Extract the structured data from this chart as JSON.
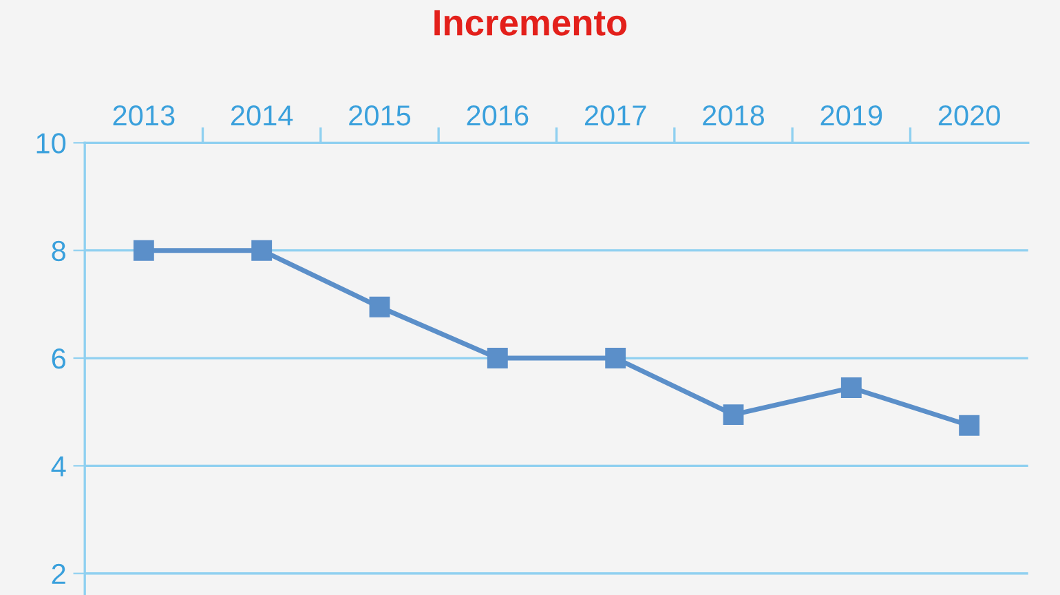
{
  "chart_data": {
    "type": "line",
    "title": "Incremento",
    "categories": [
      "2013",
      "2014",
      "2015",
      "2016",
      "2017",
      "2018",
      "2019",
      "2020"
    ],
    "series": [
      {
        "color": "#5b8fc9",
        "values": [
          8.0,
          8.0,
          6.95,
          6.0,
          6.0,
          4.95,
          5.45,
          4.75
        ]
      }
    ],
    "ylim": [
      1.6,
      10
    ],
    "yticks": [
      2,
      4,
      6,
      8,
      10
    ],
    "grid": "y",
    "marker": "square",
    "line_style": "solid",
    "legend": false
  }
}
